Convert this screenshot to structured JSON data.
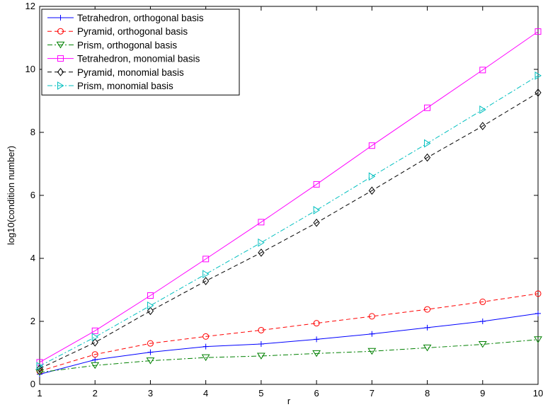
{
  "chart_data": {
    "type": "line",
    "title": "",
    "xlabel": "r",
    "ylabel": "log10(condition number)",
    "xlim": [
      1,
      10
    ],
    "ylim": [
      0,
      12
    ],
    "xticks": [
      1,
      2,
      3,
      4,
      5,
      6,
      7,
      8,
      9,
      10
    ],
    "yticks": [
      0,
      2,
      4,
      6,
      8,
      10,
      12
    ],
    "grid": false,
    "legend_position": "top-left",
    "x": [
      1,
      2,
      3,
      4,
      5,
      6,
      7,
      8,
      9,
      10
    ],
    "series": [
      {
        "name": "Tetrahedron, orthogonal basis",
        "color": "#0000ff",
        "dash": "solid",
        "marker": "plus",
        "values": [
          0.32,
          0.78,
          1.02,
          1.2,
          1.28,
          1.43,
          1.6,
          1.8,
          2.0,
          2.25
        ]
      },
      {
        "name": "Pyramid, orthogonal basis",
        "color": "#ff0000",
        "dash": "dashed",
        "marker": "circle",
        "values": [
          0.42,
          0.95,
          1.3,
          1.52,
          1.72,
          1.94,
          2.16,
          2.38,
          2.62,
          2.88
        ]
      },
      {
        "name": "Prism, orthogonal basis",
        "color": "#008000",
        "dash": "dashdot",
        "marker": "triangle-down",
        "values": [
          0.38,
          0.6,
          0.75,
          0.85,
          0.9,
          0.98,
          1.05,
          1.16,
          1.27,
          1.42
        ]
      },
      {
        "name": "Tetrahedron, monomial basis",
        "color": "#ff00ff",
        "dash": "solid",
        "marker": "square",
        "values": [
          0.7,
          1.7,
          2.82,
          3.98,
          5.15,
          6.35,
          7.58,
          8.78,
          9.98,
          11.2
        ]
      },
      {
        "name": "Pyramid, monomial basis",
        "color": "#000000",
        "dash": "dashed",
        "marker": "diamond",
        "values": [
          0.5,
          1.33,
          2.33,
          3.28,
          4.18,
          5.13,
          6.15,
          7.2,
          8.2,
          9.26
        ]
      },
      {
        "name": "Prism, monomial basis",
        "color": "#00bfbf",
        "dash": "dashdot",
        "marker": "triangle-right",
        "values": [
          0.58,
          1.5,
          2.5,
          3.5,
          4.5,
          5.53,
          6.6,
          7.65,
          8.72,
          9.8
        ]
      }
    ]
  }
}
